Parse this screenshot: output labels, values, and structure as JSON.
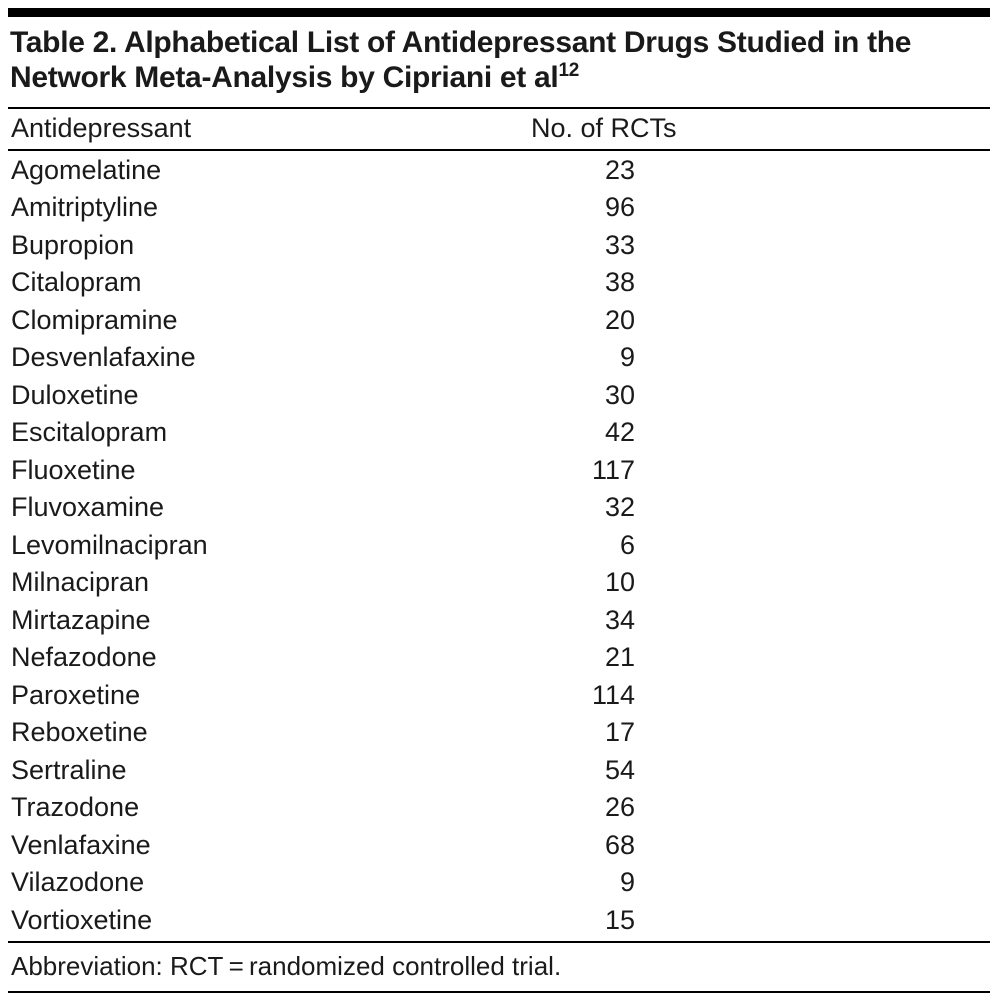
{
  "page": {
    "background": "#ffffff",
    "text_color": "#1a1a1a",
    "rule_color": "#000000"
  },
  "table": {
    "title": {
      "text": "Table 2. Alphabetical List of Antidepressant Drugs Studied in the Network Meta-Analysis by Cipriani et al",
      "superscript": "12"
    },
    "columns": {
      "drug": "Antidepressant",
      "rcts": "No. of RCTs"
    },
    "rows": [
      {
        "drug": "Agomelatine",
        "rcts": 23
      },
      {
        "drug": "Amitriptyline",
        "rcts": 96
      },
      {
        "drug": "Bupropion",
        "rcts": 33
      },
      {
        "drug": "Citalopram",
        "rcts": 38
      },
      {
        "drug": "Clomipramine",
        "rcts": 20
      },
      {
        "drug": "Desvenlafaxine",
        "rcts": 9
      },
      {
        "drug": "Duloxetine",
        "rcts": 30
      },
      {
        "drug": "Escitalopram",
        "rcts": 42
      },
      {
        "drug": "Fluoxetine",
        "rcts": 117
      },
      {
        "drug": "Fluvoxamine",
        "rcts": 32
      },
      {
        "drug": "Levomilnacipran",
        "rcts": 6
      },
      {
        "drug": "Milnacipran",
        "rcts": 10
      },
      {
        "drug": "Mirtazapine",
        "rcts": 34
      },
      {
        "drug": "Nefazodone",
        "rcts": 21
      },
      {
        "drug": "Paroxetine",
        "rcts": 114
      },
      {
        "drug": "Reboxetine",
        "rcts": 17
      },
      {
        "drug": "Sertraline",
        "rcts": 54
      },
      {
        "drug": "Trazodone",
        "rcts": 26
      },
      {
        "drug": "Venlafaxine",
        "rcts": 68
      },
      {
        "drug": "Vilazodone",
        "rcts": 9
      },
      {
        "drug": "Vortioxetine",
        "rcts": 15
      }
    ],
    "footnote": "Abbreviation: RCT = randomized controlled trial."
  }
}
